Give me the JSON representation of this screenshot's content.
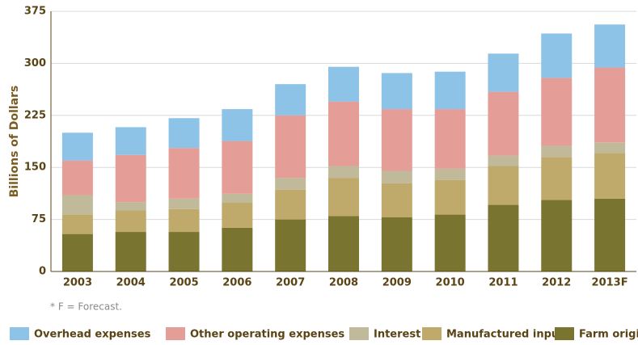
{
  "chart_data": {
    "type": "stacked_bar",
    "ylabel": "Billions of Dollars",
    "note": "* F = Forecast.",
    "categories": [
      "2003",
      "2004",
      "2005",
      "2006",
      "2007",
      "2008",
      "2009",
      "2010",
      "2011",
      "2012",
      "2013F"
    ],
    "series": [
      {
        "name": "Overhead expenses",
        "color": "#8ec3e8",
        "values": [
          40,
          40,
          43,
          46,
          45,
          50,
          52,
          54,
          55,
          64,
          62
        ]
      },
      {
        "name": "Other operating expenses",
        "color": "#e59e97",
        "values": [
          50,
          68,
          73,
          76,
          90,
          93,
          89,
          86,
          92,
          98,
          108
        ]
      },
      {
        "name": "Interest",
        "color": "#c0ba9b",
        "values": [
          28,
          12,
          15,
          13,
          17,
          17,
          18,
          16,
          15,
          16,
          15
        ]
      },
      {
        "name": "Manufactured inputs",
        "color": "#bfaa6c",
        "values": [
          28,
          31,
          33,
          36,
          43,
          55,
          49,
          50,
          56,
          62,
          66
        ]
      },
      {
        "name": "Farm origin",
        "color": "#7a7431",
        "values": [
          54,
          57,
          57,
          63,
          75,
          80,
          78,
          82,
          96,
          103,
          105
        ]
      }
    ],
    "ylim": [
      0,
      375
    ],
    "yticks": [
      0,
      75,
      150,
      225,
      300,
      375
    ],
    "grid": true,
    "legend": "bottom"
  }
}
